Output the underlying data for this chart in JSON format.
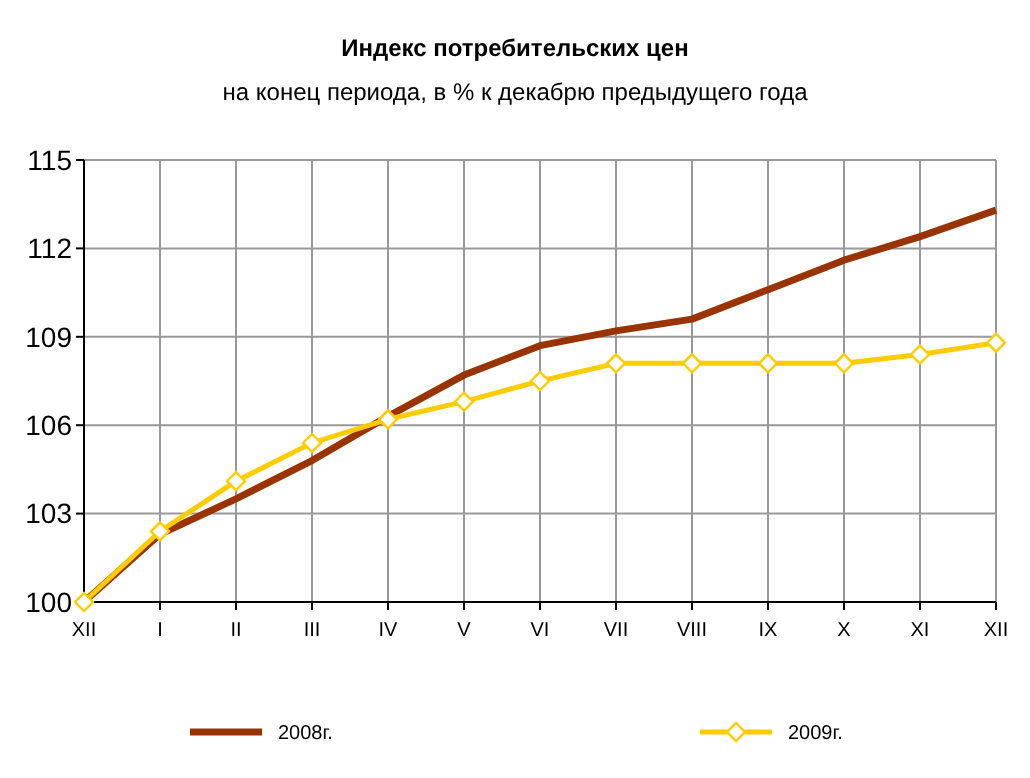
{
  "chart_data": {
    "type": "line",
    "title": "Индекс потребительских цен",
    "subtitle": "на конец периода, в % к декабрю предыдущего года",
    "categories": [
      "XII",
      "I",
      "II",
      "III",
      "IV",
      "V",
      "VI",
      "VII",
      "VIII",
      "IX",
      "X",
      "XI",
      "XII"
    ],
    "series": [
      {
        "name": "2008г.",
        "color": "#993300",
        "marker": "none",
        "values": [
          100,
          102.3,
          103.5,
          104.8,
          106.3,
          107.7,
          108.7,
          109.2,
          109.6,
          110.6,
          111.6,
          112.4,
          113.3
        ]
      },
      {
        "name": "2009г.",
        "color": "#ffcc00",
        "marker": "diamond",
        "values": [
          100,
          102.4,
          104.1,
          105.4,
          106.2,
          106.8,
          107.5,
          108.1,
          108.1,
          108.1,
          108.1,
          108.4,
          108.8
        ]
      }
    ],
    "ylim": [
      100,
      115
    ],
    "yticks": [
      100,
      103,
      106,
      109,
      112,
      115
    ],
    "grid": true,
    "legend": "bottom"
  }
}
